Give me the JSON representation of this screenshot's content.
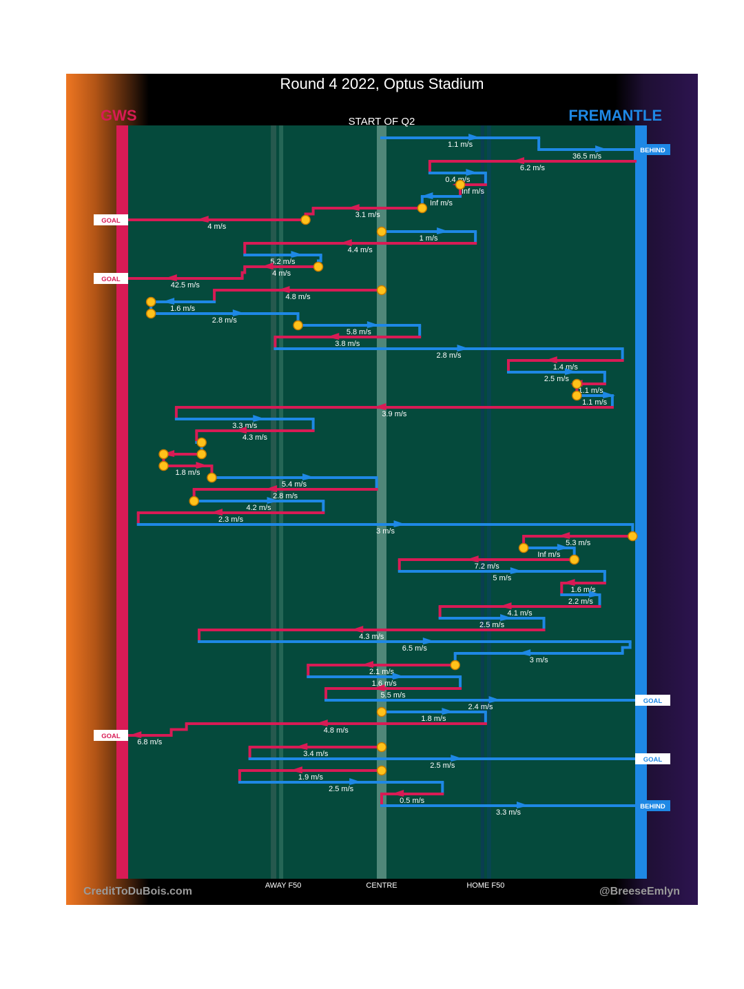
{
  "title": "Round 4 2022, Optus Stadium",
  "teams": {
    "left": {
      "name": "GWS",
      "color": "#d81b55"
    },
    "right": {
      "name": "FREMANTLE",
      "color": "#1e88e5"
    }
  },
  "credits": {
    "left": "CreditToDuBois.com",
    "right": "@BreeseEmlyn"
  },
  "chart_data": {
    "type": "line",
    "title": "Round 4 2022, Optus Stadium",
    "subtitle": "START OF Q2",
    "xlabel": "",
    "ylabel": "",
    "x_ticks": [
      "AWAY F50",
      "CENTRE",
      "HOME F50"
    ],
    "x_range": [
      -100,
      100
    ],
    "x_units": "ball position, % of distance from centre towards home goal",
    "outcome_labels": {
      "goal": "GOAL",
      "behind": "BEHIND"
    },
    "chains": [
      {
        "side": "fremantle",
        "from": 0,
        "to": 62,
        "speed": "1.1 m/s"
      },
      {
        "side": "fremantle",
        "from": 62,
        "to": 100,
        "speed": "36.5 m/s",
        "outcome": "BEHIND"
      },
      {
        "side": "gws",
        "from": 100,
        "to": 19,
        "speed": "6.2 m/s"
      },
      {
        "side": "fremantle",
        "from": 19,
        "to": 41,
        "speed": "0.4 m/s"
      },
      {
        "side": "gws",
        "from": 41,
        "to": 31,
        "speed": "Inf m/s",
        "end_marker": true
      },
      {
        "side": "fremantle",
        "from": 31,
        "to": 16,
        "speed": "Inf m/s"
      },
      {
        "side": "gws",
        "from": 16,
        "to": -27,
        "speed": "3.1 m/s",
        "start_marker": true
      },
      {
        "side": "gws",
        "from": -30,
        "to": -100,
        "speed": "4 m/s",
        "outcome": "GOAL",
        "start_marker": true
      },
      {
        "side": "fremantle",
        "from": 0,
        "to": 37,
        "speed": "1 m/s",
        "start_marker": true
      },
      {
        "side": "gws",
        "from": 37,
        "to": -54,
        "speed": "4.4 m/s"
      },
      {
        "side": "fremantle",
        "from": -54,
        "to": -24,
        "speed": "5.2 m/s"
      },
      {
        "side": "gws",
        "from": -25,
        "to": -54,
        "speed": "4 m/s",
        "start_marker": true
      },
      {
        "side": "gws",
        "from": -55,
        "to": -100,
        "speed": "42.5 m/s",
        "outcome": "GOAL"
      },
      {
        "side": "gws",
        "from": 0,
        "to": -66,
        "speed": "4.8 m/s",
        "start_marker": true
      },
      {
        "side": "fremantle",
        "from": -66,
        "to": -91,
        "speed": "1.6 m/s",
        "end_marker": true
      },
      {
        "side": "fremantle",
        "from": -91,
        "to": -33,
        "speed": "2.8 m/s",
        "start_marker": true
      },
      {
        "side": "fremantle",
        "from": -33,
        "to": 15,
        "speed": "5.8 m/s",
        "start_marker": true
      },
      {
        "side": "gws",
        "from": 15,
        "to": -42,
        "speed": "3.8 m/s"
      },
      {
        "side": "fremantle",
        "from": -42,
        "to": 95,
        "speed": "2.8 m/s"
      },
      {
        "side": "gws",
        "from": 95,
        "to": 50,
        "speed": "1.4 m/s"
      },
      {
        "side": "fremantle",
        "from": 50,
        "to": 88,
        "speed": "2.5 m/s"
      },
      {
        "side": "gws",
        "from": 88,
        "to": 77,
        "speed": "1.1 m/s",
        "end_marker": true
      },
      {
        "side": "fremantle",
        "from": 77,
        "to": 91,
        "speed": "1.1 m/s",
        "start_marker": true
      },
      {
        "side": "gws",
        "from": 91,
        "to": -81,
        "speed": "3.9 m/s"
      },
      {
        "side": "fremantle",
        "from": -81,
        "to": -27,
        "speed": "3.3 m/s"
      },
      {
        "side": "gws",
        "from": -27,
        "to": -73,
        "speed": "4.3 m/s"
      },
      {
        "side": "fremantle",
        "from": -73,
        "to": -71,
        "speed": "",
        "end_marker": true
      },
      {
        "side": "gws",
        "from": -71,
        "to": -86,
        "speed": "",
        "start_marker": true,
        "end_marker": true
      },
      {
        "side": "gws",
        "from": -86,
        "to": -67,
        "speed": "1.8 m/s",
        "start_marker": true
      },
      {
        "side": "fremantle",
        "from": -67,
        "to": -2,
        "speed": "5.4 m/s",
        "start_marker": true
      },
      {
        "side": "gws",
        "from": -2,
        "to": -74,
        "speed": "2.8 m/s"
      },
      {
        "side": "fremantle",
        "from": -74,
        "to": -23,
        "speed": "4.2 m/s",
        "start_marker": true
      },
      {
        "side": "gws",
        "from": -23,
        "to": -96,
        "speed": "2.3 m/s"
      },
      {
        "side": "fremantle",
        "from": -96,
        "to": 99,
        "speed": "3 m/s"
      },
      {
        "side": "gws",
        "from": 99,
        "to": 56,
        "speed": "5.3 m/s",
        "start_marker": true
      },
      {
        "side": "fremantle",
        "from": 56,
        "to": 76,
        "speed": "Inf m/s",
        "start_marker": true
      },
      {
        "side": "gws",
        "from": 76,
        "to": 7,
        "speed": "7.2 m/s",
        "start_marker": true
      },
      {
        "side": "fremantle",
        "from": 7,
        "to": 88,
        "speed": "5 m/s"
      },
      {
        "side": "gws",
        "from": 88,
        "to": 71,
        "speed": "1.6 m/s"
      },
      {
        "side": "fremantle",
        "from": 71,
        "to": 86,
        "speed": "2.2 m/s"
      },
      {
        "side": "gws",
        "from": 86,
        "to": 23,
        "speed": "4.1 m/s"
      },
      {
        "side": "fremantle",
        "from": 23,
        "to": 64,
        "speed": "2.5 m/s"
      },
      {
        "side": "gws",
        "from": 64,
        "to": -72,
        "speed": "4.3 m/s"
      },
      {
        "side": "fremantle",
        "from": -72,
        "to": 98,
        "speed": "6.5 m/s"
      },
      {
        "side": "fremantle",
        "from": 95,
        "to": 29,
        "speed": "3 m/s"
      },
      {
        "side": "gws",
        "from": 29,
        "to": -29,
        "speed": "2.1 m/s",
        "start_marker": true
      },
      {
        "side": "fremantle",
        "from": -29,
        "to": 31,
        "speed": "1.6 m/s"
      },
      {
        "side": "gws",
        "from": 31,
        "to": -22,
        "speed": "5.5 m/s"
      },
      {
        "side": "fremantle",
        "from": -22,
        "to": 100,
        "speed": "2.4 m/s",
        "outcome": "GOAL"
      },
      {
        "side": "fremantle",
        "from": 0,
        "to": 41,
        "speed": "1.8 m/s",
        "start_marker": true
      },
      {
        "side": "gws",
        "from": 41,
        "to": -77,
        "speed": "4.8 m/s"
      },
      {
        "side": "gws",
        "from": -83,
        "to": -100,
        "speed": "6.8 m/s",
        "outcome": "GOAL"
      },
      {
        "side": "gws",
        "from": 0,
        "to": -52,
        "speed": "3.4 m/s",
        "start_marker": true
      },
      {
        "side": "fremantle",
        "from": -52,
        "to": 100,
        "speed": "2.5 m/s",
        "outcome": "GOAL"
      },
      {
        "side": "gws",
        "from": 0,
        "to": -56,
        "speed": "1.9 m/s",
        "start_marker": true
      },
      {
        "side": "fremantle",
        "from": -56,
        "to": 24,
        "speed": "2.5 m/s"
      },
      {
        "side": "gws",
        "from": 24,
        "to": 0,
        "speed": "0.5 m/s"
      },
      {
        "side": "fremantle",
        "from": 0,
        "to": 100,
        "speed": "3.3 m/s",
        "outcome": "BEHIND"
      }
    ]
  },
  "colors": {
    "field": "#054a3c",
    "gws": "#d81b55",
    "fremantle": "#1e88e5",
    "marker_fill": "#ffc21a",
    "marker_stroke": "#c77b00"
  }
}
